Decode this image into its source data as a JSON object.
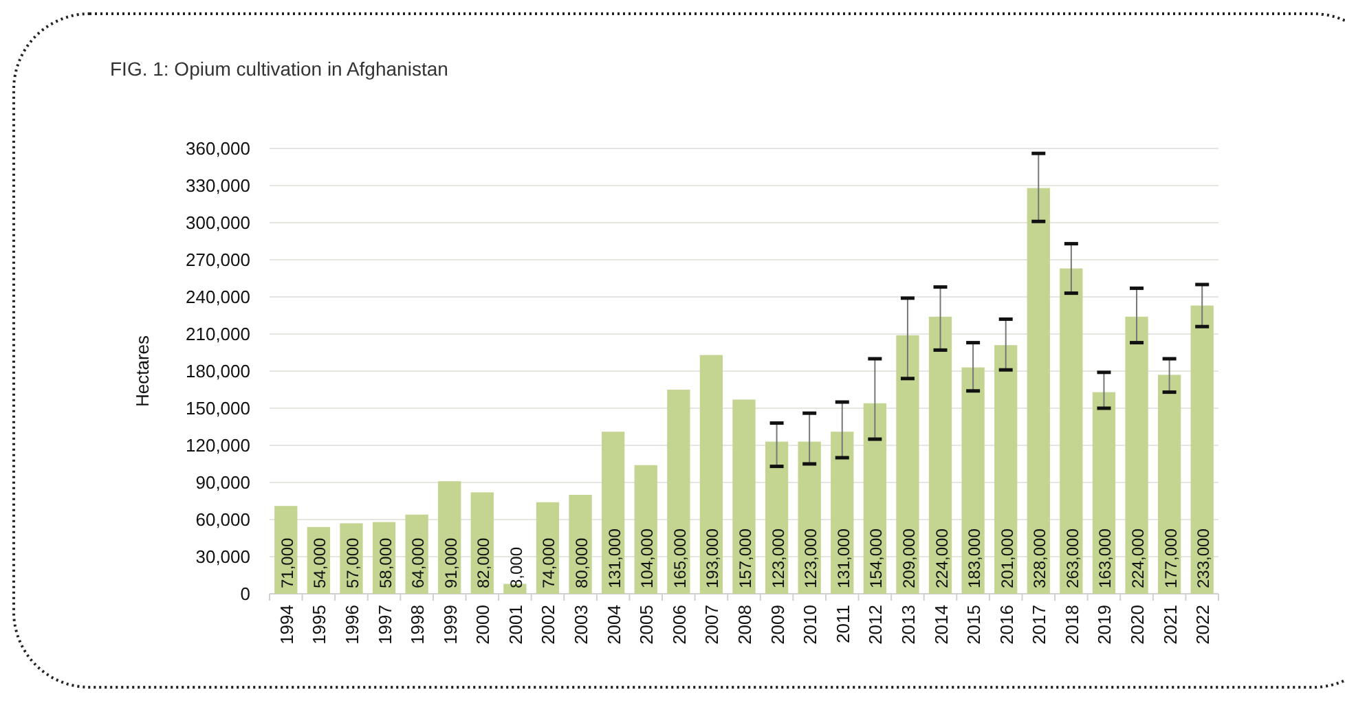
{
  "chart_data": {
    "type": "bar",
    "title": "FIG. 1: Opium cultivation in Afghanistan",
    "ylabel": "Hectares",
    "categories": [
      "1994",
      "1995",
      "1996",
      "1997",
      "1998",
      "1999",
      "2000",
      "2001",
      "2002",
      "2003",
      "2004",
      "2005",
      "2006",
      "2007",
      "2008",
      "2009",
      "2010",
      "2011",
      "2012",
      "2013",
      "2014",
      "2015",
      "2016",
      "2017",
      "2018",
      "2019",
      "2020",
      "2021",
      "2022"
    ],
    "values": [
      71000,
      54000,
      57000,
      58000,
      64000,
      91000,
      82000,
      8000,
      74000,
      80000,
      131000,
      104000,
      165000,
      193000,
      157000,
      123000,
      123000,
      131000,
      154000,
      209000,
      224000,
      183000,
      201000,
      328000,
      263000,
      163000,
      224000,
      177000,
      233000
    ],
    "errors": [
      null,
      null,
      null,
      null,
      null,
      null,
      null,
      null,
      null,
      null,
      null,
      null,
      null,
      null,
      null,
      [
        103000,
        138000
      ],
      [
        105000,
        146000
      ],
      [
        110000,
        155000
      ],
      [
        125000,
        190000
      ],
      [
        174000,
        239000
      ],
      [
        197000,
        248000
      ],
      [
        164000,
        203000
      ],
      [
        181000,
        222000
      ],
      [
        301000,
        356000
      ],
      [
        243000,
        283000
      ],
      [
        150000,
        179000
      ],
      [
        203000,
        247000
      ],
      [
        163000,
        190000
      ],
      [
        216000,
        250000
      ]
    ],
    "value_labels": [
      "71,000",
      "54,000",
      "57,000",
      "58,000",
      "64,000",
      "91,000",
      "82,000",
      "8,000",
      "74,000",
      "80,000",
      "131,000",
      "104,000",
      "165,000",
      "193,000",
      "157,000",
      "123,000",
      "123,000",
      "131,000",
      "154,000",
      "209,000",
      "224,000",
      "183,000",
      "201,000",
      "328,000",
      "263,000",
      "163,000",
      "224,000",
      "177,000",
      "233,000"
    ],
    "color": "#c3d590",
    "ylim": [
      0,
      360000
    ],
    "yticks": [
      0,
      {
        "value": 30000,
        "label": "30,000"
      },
      {
        "value": 60000,
        "label": "60,000"
      },
      {
        "value": 90000,
        "label": "90,000"
      },
      {
        "value": 120000,
        "label": "120,000"
      },
      {
        "value": 150000,
        "label": "150,000"
      },
      {
        "value": 180000,
        "label": "180,000"
      },
      {
        "value": 210000,
        "label": "210,000"
      },
      {
        "value": 240000,
        "label": "240,000"
      },
      {
        "value": 270000,
        "label": "270,000"
      },
      {
        "value": 300000,
        "label": "300,000"
      },
      {
        "value": 330000,
        "label": "330,000"
      },
      {
        "value": 360000,
        "label": "360,000"
      }
    ],
    "grid": "y"
  }
}
